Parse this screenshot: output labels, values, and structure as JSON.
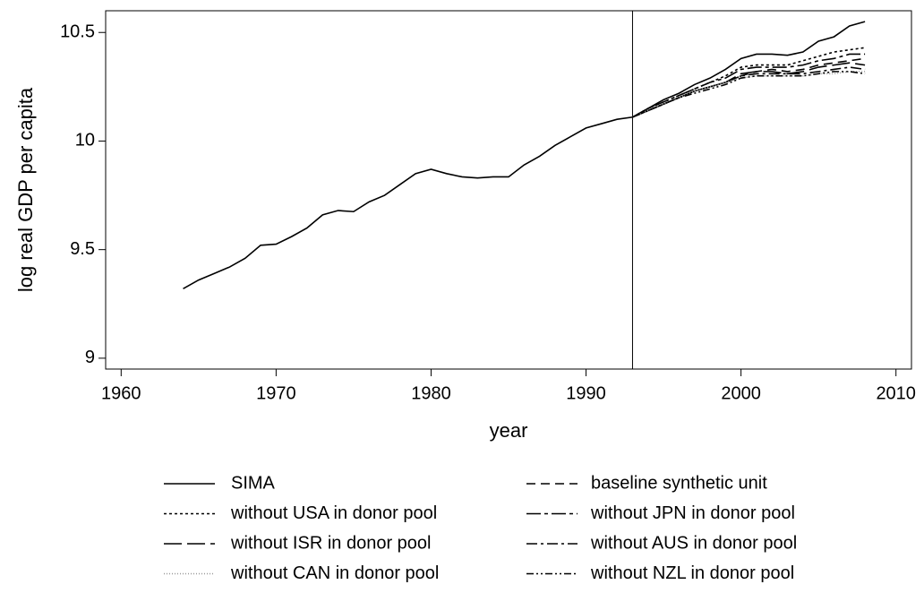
{
  "chart_data": {
    "type": "line",
    "x_label": "year",
    "y_label": "log real GDP per capita",
    "x": [
      1964,
      1965,
      1966,
      1967,
      1968,
      1969,
      1970,
      1971,
      1972,
      1973,
      1974,
      1975,
      1976,
      1977,
      1978,
      1979,
      1980,
      1981,
      1982,
      1983,
      1984,
      1985,
      1986,
      1987,
      1988,
      1989,
      1990,
      1991,
      1992,
      1993,
      1994,
      1995,
      1996,
      1997,
      1998,
      1999,
      2000,
      2001,
      2002,
      2003,
      2004,
      2005,
      2006,
      2007,
      2008
    ],
    "xlim": [
      1959,
      2011
    ],
    "xticks": [
      1960,
      1970,
      1980,
      1990,
      2000,
      2010
    ],
    "ylim": [
      8.95,
      10.6
    ],
    "yticks": [
      9,
      9.5,
      10,
      10.5
    ],
    "vline": 1993,
    "series": [
      {
        "name": "SIMA",
        "color": "#000000",
        "dash": "none",
        "values": [
          9.32,
          9.36,
          9.39,
          9.42,
          9.46,
          9.52,
          9.525,
          9.56,
          9.6,
          9.66,
          9.68,
          9.675,
          9.72,
          9.75,
          9.8,
          9.85,
          9.87,
          9.85,
          9.835,
          9.83,
          9.835,
          9.835,
          9.89,
          9.93,
          9.98,
          10.02,
          10.06,
          10.08,
          10.1,
          10.11,
          10.15,
          10.19,
          10.22,
          10.26,
          10.29,
          10.33,
          10.38,
          10.4,
          10.4,
          10.395,
          10.41,
          10.46,
          10.48,
          10.53,
          10.55
        ]
      },
      {
        "name": "baseline synthetic unit",
        "color": "#000000",
        "dash": "10,6",
        "values": [
          null,
          null,
          null,
          null,
          null,
          null,
          null,
          null,
          null,
          null,
          null,
          null,
          null,
          null,
          null,
          null,
          null,
          null,
          null,
          null,
          null,
          null,
          null,
          null,
          null,
          null,
          null,
          null,
          null,
          10.11,
          10.14,
          10.17,
          10.2,
          10.23,
          10.25,
          10.27,
          10.3,
          10.32,
          10.33,
          10.32,
          10.33,
          10.35,
          10.36,
          10.37,
          10.38
        ]
      },
      {
        "name": "without USA in donor pool",
        "color": "#000000",
        "dash": "3,3",
        "values": [
          null,
          null,
          null,
          null,
          null,
          null,
          null,
          null,
          null,
          null,
          null,
          null,
          null,
          null,
          null,
          null,
          null,
          null,
          null,
          null,
          null,
          null,
          null,
          null,
          null,
          null,
          null,
          null,
          null,
          10.11,
          10.15,
          10.18,
          10.21,
          10.24,
          10.27,
          10.3,
          10.34,
          10.35,
          10.35,
          10.35,
          10.37,
          10.39,
          10.41,
          10.42,
          10.43
        ]
      },
      {
        "name": "without JPN in donor pool",
        "color": "#000000",
        "dash": "16,4,4,4",
        "values": [
          null,
          null,
          null,
          null,
          null,
          null,
          null,
          null,
          null,
          null,
          null,
          null,
          null,
          null,
          null,
          null,
          null,
          null,
          null,
          null,
          null,
          null,
          null,
          null,
          null,
          null,
          null,
          null,
          null,
          10.11,
          10.15,
          10.18,
          10.21,
          10.24,
          10.27,
          10.29,
          10.33,
          10.34,
          10.34,
          10.34,
          10.35,
          10.37,
          10.38,
          10.4,
          10.4
        ]
      },
      {
        "name": "without ISR in donor pool",
        "color": "#000000",
        "dash": "20,6",
        "values": [
          null,
          null,
          null,
          null,
          null,
          null,
          null,
          null,
          null,
          null,
          null,
          null,
          null,
          null,
          null,
          null,
          null,
          null,
          null,
          null,
          null,
          null,
          null,
          null,
          null,
          null,
          null,
          null,
          null,
          10.11,
          10.14,
          10.17,
          10.2,
          10.23,
          10.25,
          10.27,
          10.31,
          10.32,
          10.32,
          10.31,
          10.32,
          10.34,
          10.35,
          10.36,
          10.35
        ]
      },
      {
        "name": "without AUS in donor pool",
        "color": "#000000",
        "dash": "12,4,3,4",
        "values": [
          null,
          null,
          null,
          null,
          null,
          null,
          null,
          null,
          null,
          null,
          null,
          null,
          null,
          null,
          null,
          null,
          null,
          null,
          null,
          null,
          null,
          null,
          null,
          null,
          null,
          null,
          null,
          null,
          null,
          10.11,
          10.14,
          10.17,
          10.2,
          10.23,
          10.25,
          10.27,
          10.3,
          10.31,
          10.31,
          10.31,
          10.31,
          10.32,
          10.33,
          10.34,
          10.33
        ]
      },
      {
        "name": "without CAN in donor pool",
        "color": "#999999",
        "dash": "1,2",
        "values": [
          null,
          null,
          null,
          null,
          null,
          null,
          null,
          null,
          null,
          null,
          null,
          null,
          null,
          null,
          null,
          null,
          null,
          null,
          null,
          null,
          null,
          null,
          null,
          null,
          null,
          null,
          null,
          null,
          null,
          10.11,
          10.14,
          10.17,
          10.2,
          10.23,
          10.25,
          10.27,
          10.29,
          10.3,
          10.3,
          10.3,
          10.3,
          10.31,
          10.31,
          10.32,
          10.32
        ]
      },
      {
        "name": "without NZL in donor pool",
        "color": "#000000",
        "dash": "8,3,2,3,2,3",
        "values": [
          null,
          null,
          null,
          null,
          null,
          null,
          null,
          null,
          null,
          null,
          null,
          null,
          null,
          null,
          null,
          null,
          null,
          null,
          null,
          null,
          null,
          null,
          null,
          null,
          null,
          null,
          null,
          null,
          null,
          10.11,
          10.14,
          10.17,
          10.2,
          10.22,
          10.24,
          10.26,
          10.29,
          10.3,
          10.3,
          10.3,
          10.3,
          10.31,
          10.32,
          10.32,
          10.31
        ]
      }
    ]
  }
}
